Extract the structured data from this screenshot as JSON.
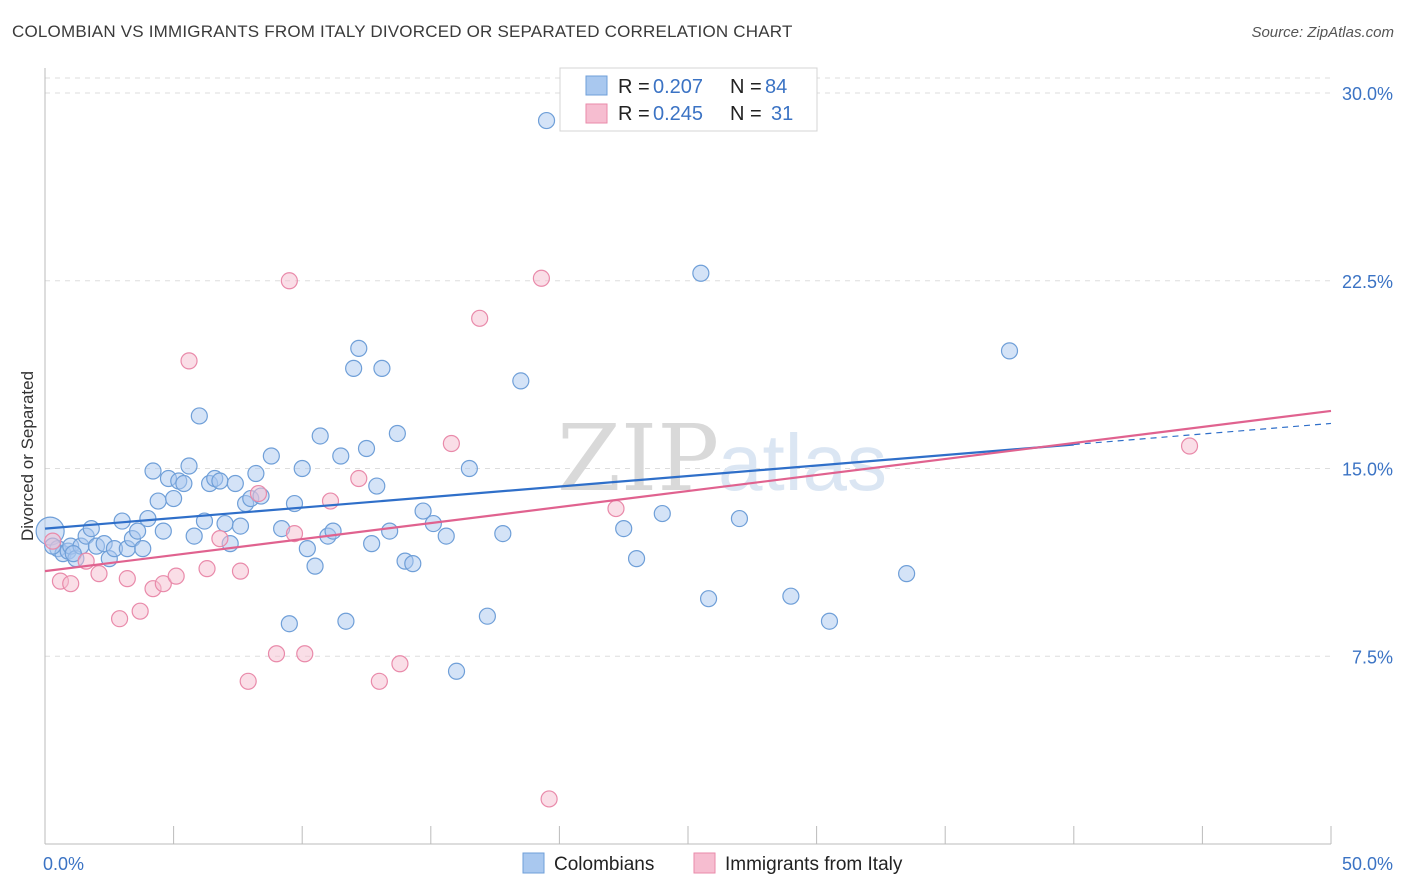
{
  "title": "COLOMBIAN VS IMMIGRANTS FROM ITALY DIVORCED OR SEPARATED CORRELATION CHART",
  "source": "Source: ZipAtlas.com",
  "watermark": {
    "part1": "ZIP",
    "part2": "atlas"
  },
  "colors": {
    "blue_fill": "#a9c8ef",
    "blue_stroke": "#6f9fd8",
    "blue_line": "#2f6fc9",
    "pink_fill": "#f6bdd0",
    "pink_stroke": "#e98aaa",
    "pink_line": "#e0628f",
    "grid": "#dddddd",
    "axis": "#bbbbbb",
    "tick_text": "#3b73c4"
  },
  "legend": {
    "r_label": "R =",
    "n_label": "N =",
    "rows": [
      {
        "r": "0.207",
        "n": "84"
      },
      {
        "r": "0.245",
        "n": "31"
      }
    ]
  },
  "chart_data": {
    "type": "scatter",
    "ylabel": "Divorced or Separated",
    "xlim": [
      0,
      50
    ],
    "ylim": [
      0,
      31
    ],
    "x_tick_labels": [
      "0.0%",
      "50.0%"
    ],
    "y_ticks": [
      {
        "value": 7.5,
        "label": "7.5%"
      },
      {
        "value": 15.0,
        "label": "15.0%"
      },
      {
        "value": 22.5,
        "label": "22.5%"
      },
      {
        "value": 30.0,
        "label": "30.0%"
      }
    ],
    "grid": true,
    "legend_position": "top-center",
    "series": [
      {
        "name": "Colombians",
        "color_key": "blue",
        "trend": {
          "x": [
            0,
            50
          ],
          "y": [
            12.6,
            16.8
          ],
          "solid_until_x": 40
        },
        "points": [
          [
            0.2,
            12.5
          ],
          [
            0.5,
            11.8
          ],
          [
            0.7,
            11.6
          ],
          [
            0.9,
            11.7
          ],
          [
            1.0,
            11.9
          ],
          [
            1.2,
            11.4
          ],
          [
            1.4,
            11.9
          ],
          [
            1.6,
            12.3
          ],
          [
            1.8,
            12.6
          ],
          [
            2.0,
            11.9
          ],
          [
            2.3,
            12.0
          ],
          [
            2.5,
            11.4
          ],
          [
            2.7,
            11.8
          ],
          [
            3.0,
            12.9
          ],
          [
            3.2,
            11.8
          ],
          [
            3.4,
            12.2
          ],
          [
            3.6,
            12.5
          ],
          [
            3.8,
            11.8
          ],
          [
            4.0,
            13.0
          ],
          [
            4.2,
            14.9
          ],
          [
            4.4,
            13.7
          ],
          [
            4.6,
            12.5
          ],
          [
            4.8,
            14.6
          ],
          [
            5.0,
            13.8
          ],
          [
            5.2,
            14.5
          ],
          [
            5.4,
            14.4
          ],
          [
            5.6,
            15.1
          ],
          [
            5.8,
            12.3
          ],
          [
            6.0,
            17.1
          ],
          [
            6.2,
            12.9
          ],
          [
            6.4,
            14.4
          ],
          [
            6.6,
            14.6
          ],
          [
            6.8,
            14.5
          ],
          [
            7.0,
            12.8
          ],
          [
            7.2,
            12.0
          ],
          [
            7.4,
            14.4
          ],
          [
            7.6,
            12.7
          ],
          [
            7.8,
            13.6
          ],
          [
            8.0,
            13.8
          ],
          [
            8.2,
            14.8
          ],
          [
            8.4,
            13.9
          ],
          [
            8.8,
            15.5
          ],
          [
            9.2,
            12.6
          ],
          [
            9.5,
            8.8
          ],
          [
            9.7,
            13.6
          ],
          [
            10.0,
            15.0
          ],
          [
            10.2,
            11.8
          ],
          [
            10.5,
            11.1
          ],
          [
            10.7,
            16.3
          ],
          [
            11.0,
            12.3
          ],
          [
            11.2,
            12.5
          ],
          [
            11.5,
            15.5
          ],
          [
            11.7,
            8.9
          ],
          [
            12.0,
            19.0
          ],
          [
            12.2,
            19.8
          ],
          [
            12.5,
            15.8
          ],
          [
            12.7,
            12.0
          ],
          [
            12.9,
            14.3
          ],
          [
            13.1,
            19.0
          ],
          [
            13.4,
            12.5
          ],
          [
            13.7,
            16.4
          ],
          [
            14.0,
            11.3
          ],
          [
            14.3,
            11.2
          ],
          [
            14.7,
            13.3
          ],
          [
            15.1,
            12.8
          ],
          [
            15.6,
            12.3
          ],
          [
            16.0,
            6.9
          ],
          [
            16.5,
            15.0
          ],
          [
            17.2,
            9.1
          ],
          [
            17.8,
            12.4
          ],
          [
            18.5,
            18.5
          ],
          [
            19.5,
            28.9
          ],
          [
            22.5,
            12.6
          ],
          [
            23.0,
            11.4
          ],
          [
            24.0,
            13.2
          ],
          [
            25.5,
            22.8
          ],
          [
            25.8,
            9.8
          ],
          [
            27.0,
            13.0
          ],
          [
            29.0,
            9.9
          ],
          [
            30.5,
            8.9
          ],
          [
            33.5,
            10.8
          ],
          [
            37.5,
            19.7
          ],
          [
            1.1,
            11.6
          ],
          [
            0.3,
            11.9
          ]
        ]
      },
      {
        "name": "Immigrants from Italy",
        "color_key": "pink",
        "trend": {
          "x": [
            0,
            50
          ],
          "y": [
            10.9,
            17.3
          ],
          "solid_until_x": 50
        },
        "points": [
          [
            0.3,
            12.1
          ],
          [
            0.6,
            10.5
          ],
          [
            1.0,
            10.4
          ],
          [
            1.6,
            11.3
          ],
          [
            2.1,
            10.8
          ],
          [
            2.9,
            9.0
          ],
          [
            3.2,
            10.6
          ],
          [
            3.7,
            9.3
          ],
          [
            4.2,
            10.2
          ],
          [
            4.6,
            10.4
          ],
          [
            5.1,
            10.7
          ],
          [
            5.6,
            19.3
          ],
          [
            6.3,
            11.0
          ],
          [
            6.8,
            12.2
          ],
          [
            7.6,
            10.9
          ],
          [
            7.9,
            6.5
          ],
          [
            8.3,
            14.0
          ],
          [
            9.0,
            7.6
          ],
          [
            9.5,
            22.5
          ],
          [
            9.7,
            12.4
          ],
          [
            10.1,
            7.6
          ],
          [
            11.1,
            13.7
          ],
          [
            12.2,
            14.6
          ],
          [
            13.0,
            6.5
          ],
          [
            13.8,
            7.2
          ],
          [
            15.8,
            16.0
          ],
          [
            16.9,
            21.0
          ],
          [
            19.3,
            22.6
          ],
          [
            19.6,
            1.8
          ],
          [
            22.2,
            13.4
          ],
          [
            44.5,
            15.9
          ]
        ]
      }
    ]
  }
}
